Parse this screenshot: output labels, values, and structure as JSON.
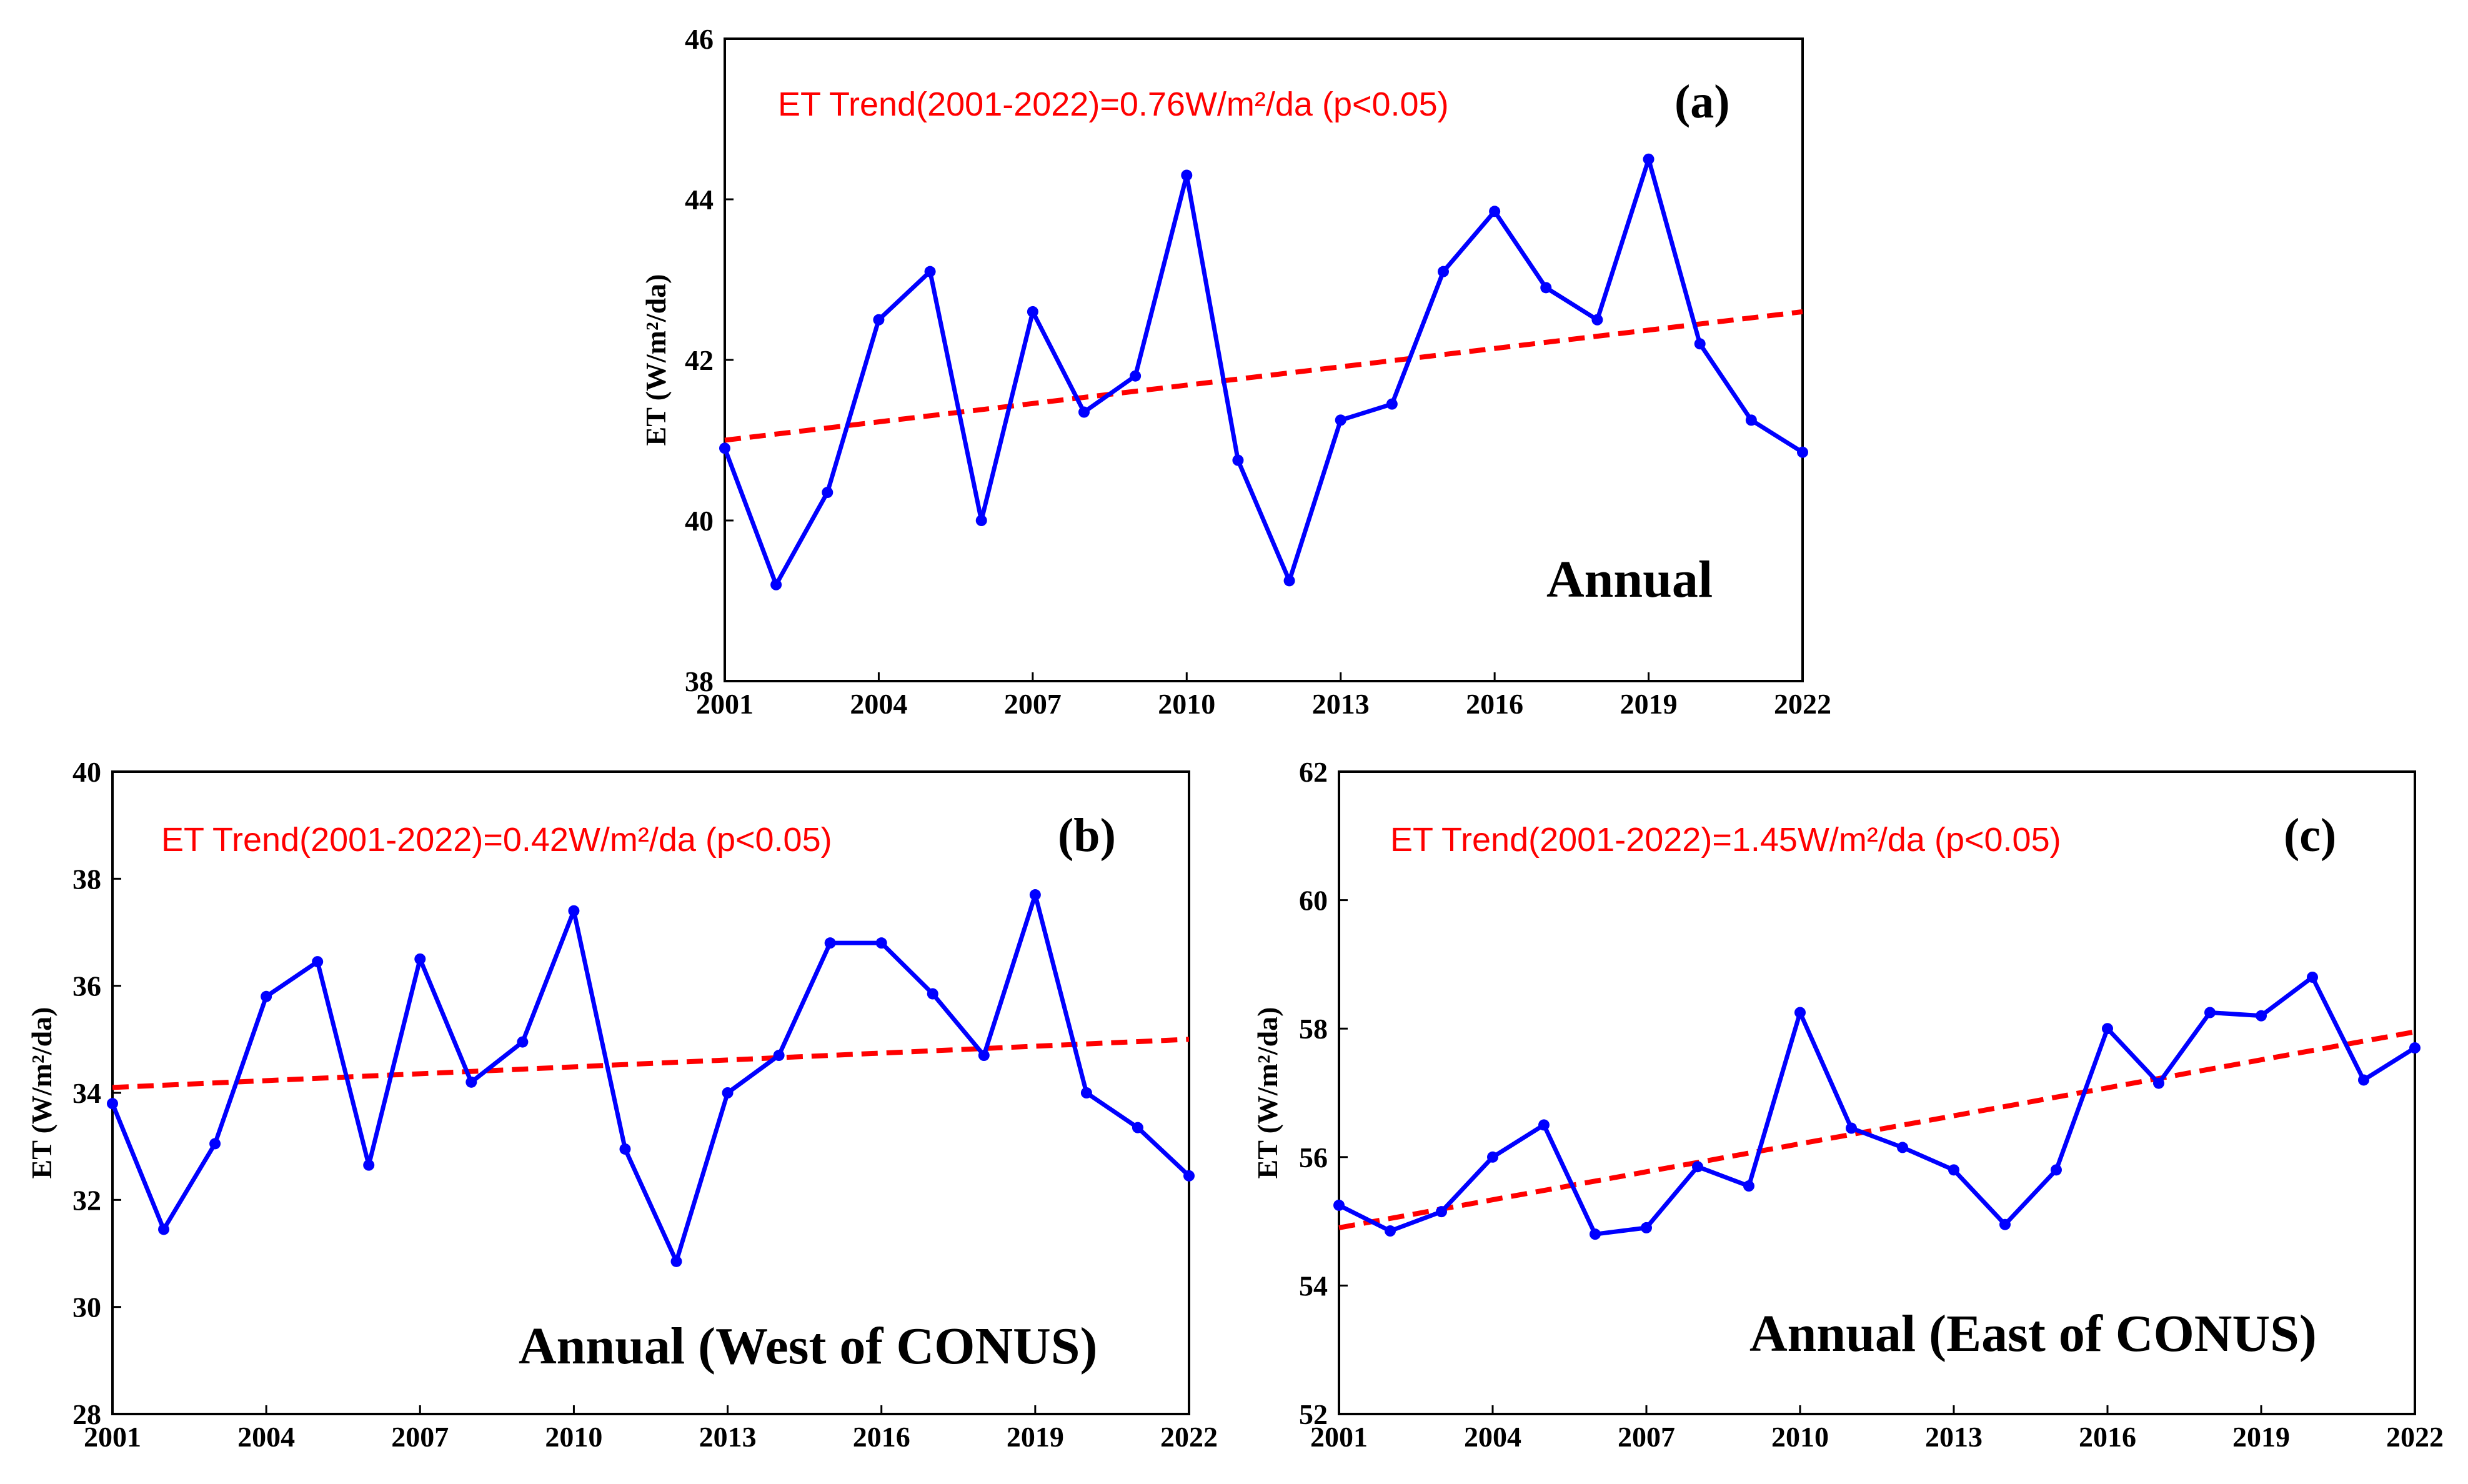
{
  "colors": {
    "series": "#0000ff",
    "trend": "#ff0000",
    "axis": "#000000"
  },
  "chart_data": [
    {
      "id": "a",
      "type": "line",
      "panel_label": "(a)",
      "title": "Annual",
      "trend_annotation": "ET Trend(2001-2022)=0.76W/m²/da (p<0.05)",
      "ylabel": "ET (W/m²/da)",
      "xlabel": "",
      "xlim": [
        2001,
        2022
      ],
      "ylim": [
        38,
        46
      ],
      "xticks": [
        "2001",
        "2004",
        "2007",
        "2010",
        "2013",
        "2016",
        "2019",
        "2022"
      ],
      "yticks": [
        "38",
        "40",
        "42",
        "44",
        "46"
      ],
      "x": [
        2001,
        2002,
        2003,
        2004,
        2005,
        2006,
        2007,
        2008,
        2009,
        2010,
        2011,
        2012,
        2013,
        2014,
        2015,
        2016,
        2017,
        2018,
        2019,
        2020,
        2021,
        2022
      ],
      "series": [
        {
          "name": "ET",
          "values": [
            40.9,
            39.2,
            40.35,
            42.5,
            43.1,
            40.0,
            42.6,
            41.35,
            41.8,
            44.3,
            40.75,
            39.25,
            41.25,
            41.45,
            43.1,
            43.85,
            42.9,
            42.5,
            44.5,
            42.2,
            41.25,
            40.85
          ]
        }
      ],
      "trend_line": {
        "start": 41.0,
        "end": 42.6
      }
    },
    {
      "id": "b",
      "type": "line",
      "panel_label": "(b)",
      "title": "Annual (West of CONUS)",
      "trend_annotation": "ET Trend(2001-2022)=0.42W/m²/da (p<0.05)",
      "ylabel": "ET (W/m²/da)",
      "xlabel": "",
      "xlim": [
        2001,
        2022
      ],
      "ylim": [
        28,
        40
      ],
      "xticks": [
        "2001",
        "2004",
        "2007",
        "2010",
        "2013",
        "2016",
        "2019",
        "2022"
      ],
      "yticks": [
        "28",
        "30",
        "32",
        "34",
        "36",
        "38",
        "40"
      ],
      "x": [
        2001,
        2002,
        2003,
        2004,
        2005,
        2006,
        2007,
        2008,
        2009,
        2010,
        2011,
        2012,
        2013,
        2014,
        2015,
        2016,
        2017,
        2018,
        2019,
        2020,
        2021,
        2022
      ],
      "series": [
        {
          "name": "ET",
          "values": [
            33.8,
            31.45,
            33.05,
            35.8,
            36.45,
            32.65,
            36.5,
            34.2,
            34.95,
            37.4,
            32.95,
            30.85,
            34.0,
            34.7,
            36.8,
            36.8,
            35.85,
            34.7,
            37.7,
            34.0,
            33.35,
            32.45
          ]
        }
      ],
      "trend_line": {
        "start": 34.1,
        "end": 35.0
      }
    },
    {
      "id": "c",
      "type": "line",
      "panel_label": "(c)",
      "title": "Annual (East of CONUS)",
      "trend_annotation": "ET Trend(2001-2022)=1.45W/m²/da (p<0.05)",
      "ylabel": "ET (W/m²/da)",
      "xlabel": "",
      "xlim": [
        2001,
        2022
      ],
      "ylim": [
        52,
        62
      ],
      "xticks": [
        "2001",
        "2004",
        "2007",
        "2010",
        "2013",
        "2016",
        "2019",
        "2022"
      ],
      "yticks": [
        "52",
        "54",
        "56",
        "58",
        "60",
        "62"
      ],
      "x": [
        2001,
        2002,
        2003,
        2004,
        2005,
        2006,
        2007,
        2008,
        2009,
        2010,
        2011,
        2012,
        2013,
        2014,
        2015,
        2016,
        2017,
        2018,
        2019,
        2020,
        2021,
        2022
      ],
      "series": [
        {
          "name": "ET",
          "values": [
            55.25,
            54.85,
            55.15,
            56.0,
            56.5,
            54.8,
            54.9,
            55.85,
            55.55,
            58.25,
            56.45,
            56.15,
            55.8,
            54.95,
            55.8,
            58.0,
            57.15,
            58.25,
            58.2,
            58.8,
            57.2,
            57.7
          ]
        }
      ],
      "trend_line": {
        "start": 54.9,
        "end": 57.95
      }
    }
  ]
}
